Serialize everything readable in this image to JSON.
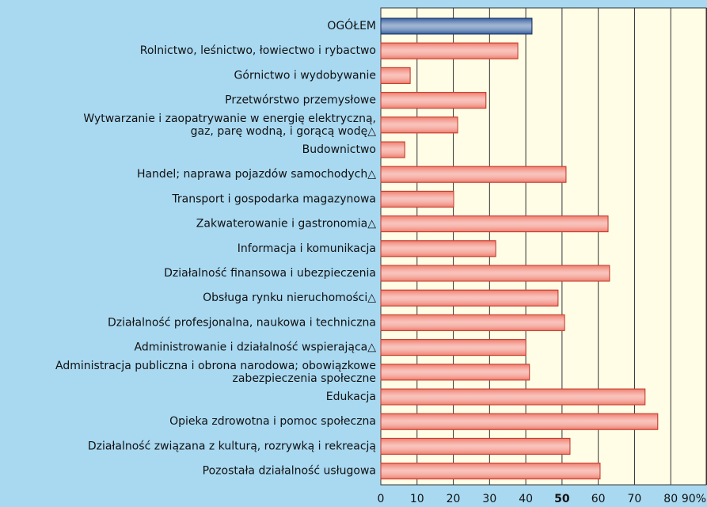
{
  "chart_data": {
    "type": "bar",
    "orientation": "horizontal",
    "categories": [
      "OGÓŁEM",
      "Rolnictwo, leśnictwo, łowiectwo i rybactwo",
      "Górnictwo i wydobywanie",
      "Przetwórstwo przemysłowe",
      "Wytwarzanie i zaopatrywanie w energię elektryczną,\ngaz, parę wodną, i gorącą wodę△",
      "Budownictwo",
      "Handel; naprawa pojazdów samochodych△",
      "Transport i gospodarka magazynowa",
      "Zakwaterowanie i gastronomia△",
      "Informacja i komunikacja",
      "Działalność finansowa i ubezpieczenia",
      "Obsługa rynku nieruchomości△",
      "Działalność profesjonalna, naukowa i techniczna",
      "Administrowanie i działalność wspierająca△",
      "Administracja publiczna i obrona narodowa; obowiązkowe\nzabezpieczenia społeczne",
      "Edukacja",
      "Opieka zdrowotna i pomoc społeczna",
      "Działalność związana z kulturą, rozrywką i rekreacją",
      "Pozostała działalność usługowa"
    ],
    "values": [
      41.7,
      37.8,
      8.1,
      29.0,
      21.2,
      6.6,
      51.1,
      20.1,
      62.7,
      31.7,
      63.1,
      48.9,
      50.7,
      40.0,
      41.0,
      72.9,
      76.4,
      52.2,
      60.5
    ],
    "colors": [
      "#2e5b9c",
      "#f07a6a",
      "#f07a6a",
      "#f07a6a",
      "#f07a6a",
      "#f07a6a",
      "#f07a6a",
      "#f07a6a",
      "#f07a6a",
      "#f07a6a",
      "#f07a6a",
      "#f07a6a",
      "#f07a6a",
      "#f07a6a",
      "#f07a6a",
      "#f07a6a",
      "#f07a6a",
      "#f07a6a",
      "#f07a6a"
    ],
    "xlim": [
      0,
      90
    ],
    "xticks": [
      0,
      10,
      20,
      30,
      40,
      50,
      60,
      70,
      80,
      {
        "value": 90,
        "label": "90%"
      }
    ],
    "bold_tick": 50,
    "grid": true
  }
}
